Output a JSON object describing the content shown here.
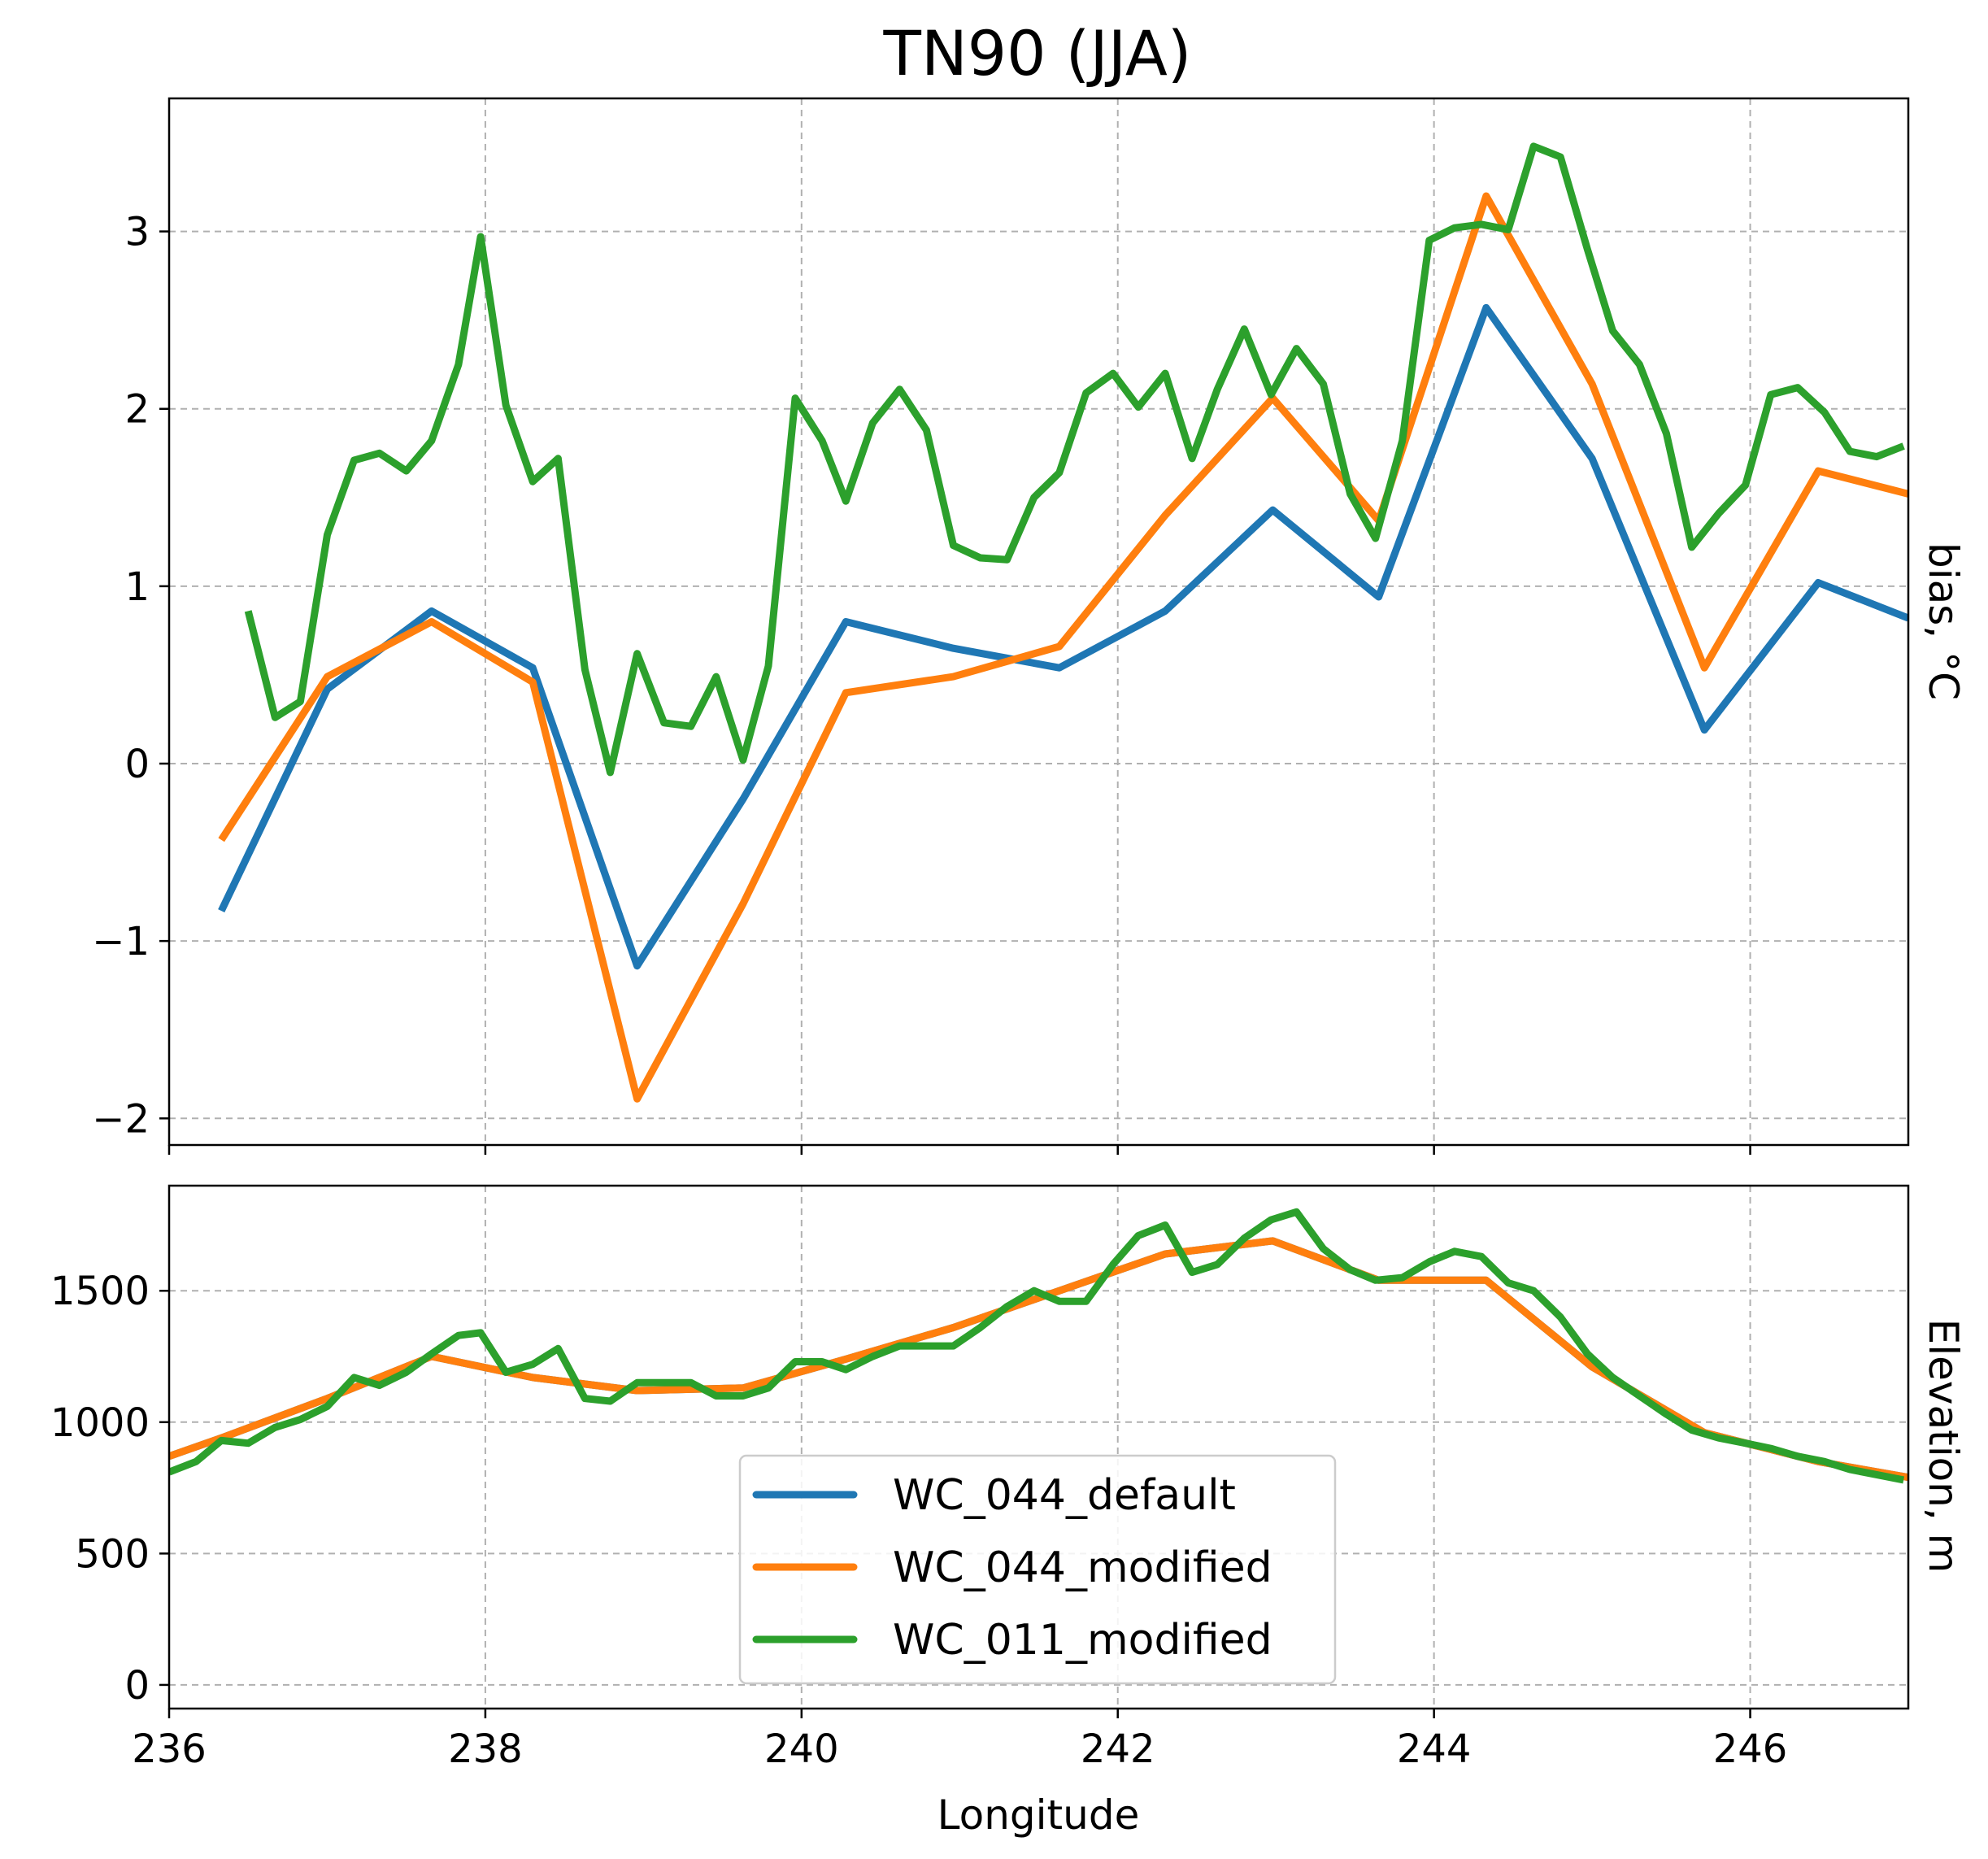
{
  "chart_data": [
    {
      "type": "line",
      "title": "TN90 (JJA)",
      "xlabel": "",
      "ylabel": "bias, °C",
      "ylabel_side": "right",
      "xlim": [
        236,
        247
      ],
      "ylim": [
        -2.15,
        3.75
      ],
      "xticks": [
        236,
        238,
        240,
        242,
        244,
        246
      ],
      "yticks": [
        -2,
        -1,
        0,
        1,
        2,
        3
      ],
      "ytick_labels": [
        "−2",
        "−1",
        "0",
        "1",
        "2",
        "3"
      ],
      "grid": true,
      "series": [
        {
          "name": "WC_044_default",
          "color": "#1f77b4",
          "x": [
            236.33,
            237.0,
            237.66,
            238.3,
            238.96,
            239.63,
            240.28,
            240.96,
            241.63,
            242.3,
            242.98,
            243.65,
            244.33,
            245.0,
            245.71,
            246.43,
            247.0
          ],
          "y": [
            -0.83,
            0.42,
            0.86,
            0.54,
            -1.14,
            -0.2,
            0.8,
            0.65,
            0.54,
            0.86,
            1.43,
            0.94,
            2.57,
            1.72,
            0.19,
            1.02,
            0.82
          ]
        },
        {
          "name": "WC_044_modified",
          "color": "#ff7f0e",
          "x": [
            236.33,
            237.0,
            237.66,
            238.3,
            238.96,
            239.63,
            240.28,
            240.96,
            241.63,
            242.3,
            242.98,
            243.65,
            244.33,
            245.0,
            245.71,
            246.43,
            247.0
          ],
          "y": [
            -0.43,
            0.49,
            0.8,
            0.46,
            -1.89,
            -0.79,
            0.4,
            0.49,
            0.66,
            1.4,
            2.06,
            1.37,
            3.2,
            2.14,
            0.54,
            1.65,
            1.52
          ]
        },
        {
          "name": "WC_011_modified",
          "color": "#2ca02c",
          "x": [
            236.5,
            236.67,
            236.83,
            237.0,
            237.17,
            237.33,
            237.5,
            237.66,
            237.83,
            237.97,
            238.13,
            238.3,
            238.46,
            238.63,
            238.79,
            238.96,
            239.13,
            239.3,
            239.46,
            239.63,
            239.79,
            239.96,
            240.13,
            240.28,
            240.45,
            240.62,
            240.79,
            240.96,
            241.13,
            241.3,
            241.47,
            241.63,
            241.8,
            241.97,
            242.13,
            242.3,
            242.47,
            242.63,
            242.8,
            242.97,
            243.13,
            243.3,
            243.47,
            243.63,
            243.8,
            243.97,
            244.13,
            244.3,
            244.47,
            244.63,
            244.8,
            244.97,
            245.13,
            245.3,
            245.47,
            245.63,
            245.8,
            245.97,
            246.13,
            246.3,
            246.47,
            246.63,
            246.8,
            246.97
          ],
          "y": [
            0.86,
            0.26,
            0.35,
            1.29,
            1.71,
            1.75,
            1.65,
            1.82,
            2.25,
            2.97,
            2.02,
            1.59,
            1.72,
            0.53,
            -0.05,
            0.62,
            0.23,
            0.21,
            0.49,
            0.02,
            0.55,
            2.06,
            1.82,
            1.48,
            1.92,
            2.11,
            1.88,
            1.23,
            1.16,
            1.15,
            1.5,
            1.64,
            2.09,
            2.2,
            2.01,
            2.2,
            1.72,
            2.11,
            2.45,
            2.08,
            2.34,
            2.14,
            1.52,
            1.27,
            1.82,
            2.95,
            3.02,
            3.04,
            3.01,
            3.48,
            3.42,
            2.9,
            2.44,
            2.25,
            1.86,
            1.22,
            1.41,
            1.57,
            2.08,
            2.12,
            1.98,
            1.76,
            1.73,
            1.79
          ]
        }
      ]
    },
    {
      "type": "line",
      "title": "",
      "xlabel": "Longitude",
      "ylabel": "Elevation, m",
      "ylabel_side": "right",
      "xlim": [
        236,
        247
      ],
      "ylim": [
        -90,
        1900
      ],
      "xticks": [
        236,
        238,
        240,
        242,
        244,
        246
      ],
      "xtick_labels": [
        "236",
        "238",
        "240",
        "242",
        "244",
        "246"
      ],
      "yticks": [
        0,
        500,
        1000,
        1500
      ],
      "ytick_labels": [
        "0",
        "500",
        "1000",
        "1500"
      ],
      "grid": true,
      "legend": "bottom-center",
      "series": [
        {
          "name": "WC_044_default",
          "color": "#1f77b4",
          "x": [
            236.0,
            236.33,
            237.0,
            237.66,
            238.3,
            238.96,
            239.63,
            240.28,
            240.96,
            241.63,
            242.3,
            242.98,
            243.65,
            244.33,
            245.0,
            245.71,
            246.43,
            247.0
          ],
          "y": [
            870,
            940,
            1090,
            1250,
            1170,
            1120,
            1130,
            1240,
            1360,
            1500,
            1640,
            1690,
            1540,
            1540,
            1210,
            960,
            850,
            790
          ]
        },
        {
          "name": "WC_044_modified",
          "color": "#ff7f0e",
          "x": [
            236.0,
            236.33,
            237.0,
            237.66,
            238.3,
            238.96,
            239.63,
            240.28,
            240.96,
            241.63,
            242.3,
            242.98,
            243.65,
            244.33,
            245.0,
            245.71,
            246.43,
            247.0
          ],
          "y": [
            870,
            940,
            1090,
            1250,
            1170,
            1120,
            1130,
            1240,
            1360,
            1500,
            1640,
            1690,
            1540,
            1540,
            1210,
            960,
            850,
            790
          ]
        },
        {
          "name": "WC_011_modified",
          "color": "#2ca02c",
          "x": [
            236.0,
            236.17,
            236.33,
            236.5,
            236.67,
            236.83,
            237.0,
            237.17,
            237.33,
            237.5,
            237.66,
            237.83,
            237.97,
            238.13,
            238.3,
            238.46,
            238.63,
            238.79,
            238.96,
            239.13,
            239.3,
            239.46,
            239.63,
            239.79,
            239.96,
            240.13,
            240.28,
            240.45,
            240.62,
            240.79,
            240.96,
            241.13,
            241.3,
            241.47,
            241.63,
            241.8,
            241.97,
            242.13,
            242.3,
            242.47,
            242.63,
            242.8,
            242.97,
            243.13,
            243.3,
            243.47,
            243.63,
            243.8,
            243.97,
            244.13,
            244.3,
            244.47,
            244.63,
            244.8,
            244.97,
            245.13,
            245.3,
            245.47,
            245.63,
            245.8,
            245.97,
            246.13,
            246.3,
            246.47,
            246.63,
            246.8,
            246.97
          ],
          "y": [
            810,
            850,
            930,
            920,
            980,
            1010,
            1060,
            1170,
            1140,
            1190,
            1260,
            1330,
            1340,
            1190,
            1220,
            1280,
            1090,
            1080,
            1150,
            1150,
            1150,
            1100,
            1100,
            1130,
            1230,
            1230,
            1200,
            1250,
            1290,
            1290,
            1290,
            1360,
            1440,
            1500,
            1460,
            1460,
            1600,
            1710,
            1750,
            1570,
            1600,
            1700,
            1770,
            1800,
            1660,
            1580,
            1540,
            1550,
            1610,
            1650,
            1630,
            1530,
            1500,
            1400,
            1260,
            1170,
            1100,
            1030,
            970,
            940,
            920,
            900,
            870,
            850,
            820,
            800,
            780
          ]
        }
      ]
    }
  ]
}
